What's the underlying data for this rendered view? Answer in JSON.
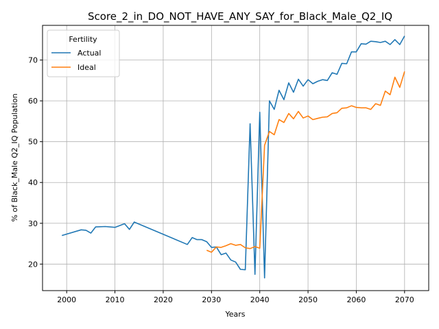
{
  "chart_data": {
    "type": "line",
    "title": "Score_2_in_DO_NOT_HAVE_ANY_SAY_for_Black_Male_Q2_IQ",
    "xlabel": "Years",
    "ylabel": "% of Black_Male Q2_IQ Population",
    "xlim": [
      1995,
      2075
    ],
    "ylim": [
      13.5,
      78.5
    ],
    "xticks": [
      2000,
      2010,
      2020,
      2030,
      2040,
      2050,
      2060,
      2070
    ],
    "yticks": [
      20,
      30,
      40,
      50,
      60,
      70
    ],
    "grid": true,
    "legend": {
      "title": "Fertility",
      "placement": "top-left"
    },
    "series": [
      {
        "name": "Actual",
        "color": "#1f77b4",
        "points": [
          [
            1999,
            27.0
          ],
          [
            2003,
            28.4
          ],
          [
            2004,
            28.3
          ],
          [
            2005,
            27.6
          ],
          [
            2006,
            29.1
          ],
          [
            2008,
            29.2
          ],
          [
            2010,
            29.0
          ],
          [
            2012,
            29.9
          ],
          [
            2013,
            28.5
          ],
          [
            2014,
            30.3
          ],
          [
            2025,
            24.8
          ],
          [
            2026,
            26.5
          ],
          [
            2027,
            26.0
          ],
          [
            2028,
            26.0
          ],
          [
            2029,
            25.5
          ],
          [
            2030,
            24.1
          ],
          [
            2031,
            24.2
          ],
          [
            2032,
            22.3
          ],
          [
            2033,
            22.7
          ],
          [
            2034,
            21.0
          ],
          [
            2035,
            20.5
          ],
          [
            2036,
            18.7
          ],
          [
            2037,
            18.6
          ],
          [
            2038,
            54.4
          ],
          [
            2039,
            17.5
          ],
          [
            2040,
            57.2
          ],
          [
            2041,
            16.6
          ],
          [
            2042,
            60.0
          ],
          [
            2043,
            57.9
          ],
          [
            2044,
            62.6
          ],
          [
            2045,
            60.3
          ],
          [
            2046,
            64.4
          ],
          [
            2047,
            62.1
          ],
          [
            2048,
            65.3
          ],
          [
            2049,
            63.6
          ],
          [
            2050,
            65.2
          ],
          [
            2051,
            64.2
          ],
          [
            2052,
            64.8
          ],
          [
            2053,
            65.2
          ],
          [
            2054,
            65.0
          ],
          [
            2055,
            66.9
          ],
          [
            2056,
            66.5
          ],
          [
            2057,
            69.2
          ],
          [
            2058,
            69.1
          ],
          [
            2059,
            72.0
          ],
          [
            2060,
            72.0
          ],
          [
            2061,
            74.0
          ],
          [
            2062,
            73.9
          ],
          [
            2063,
            74.6
          ],
          [
            2064,
            74.5
          ],
          [
            2065,
            74.3
          ],
          [
            2066,
            74.6
          ],
          [
            2067,
            73.8
          ],
          [
            2068,
            75.0
          ],
          [
            2069,
            73.8
          ],
          [
            2070,
            75.9
          ]
        ]
      },
      {
        "name": "Ideal",
        "color": "#ff7f0e",
        "points": [
          [
            2029,
            23.4
          ],
          [
            2030,
            22.9
          ],
          [
            2031,
            24.2
          ],
          [
            2032,
            24.1
          ],
          [
            2033,
            24.5
          ],
          [
            2034,
            25.0
          ],
          [
            2035,
            24.6
          ],
          [
            2036,
            24.8
          ],
          [
            2037,
            24.0
          ],
          [
            2038,
            23.8
          ],
          [
            2039,
            24.3
          ],
          [
            2040,
            23.9
          ],
          [
            2041,
            49.1
          ],
          [
            2042,
            52.5
          ],
          [
            2043,
            51.7
          ],
          [
            2044,
            55.4
          ],
          [
            2045,
            54.7
          ],
          [
            2046,
            56.9
          ],
          [
            2047,
            55.6
          ],
          [
            2048,
            57.4
          ],
          [
            2049,
            55.8
          ],
          [
            2050,
            56.3
          ],
          [
            2051,
            55.4
          ],
          [
            2052,
            55.7
          ],
          [
            2053,
            56.0
          ],
          [
            2054,
            56.1
          ],
          [
            2055,
            56.9
          ],
          [
            2056,
            57.1
          ],
          [
            2057,
            58.2
          ],
          [
            2058,
            58.3
          ],
          [
            2059,
            58.8
          ],
          [
            2060,
            58.4
          ],
          [
            2061,
            58.3
          ],
          [
            2062,
            58.3
          ],
          [
            2063,
            57.9
          ],
          [
            2064,
            59.3
          ],
          [
            2065,
            58.9
          ],
          [
            2066,
            62.4
          ],
          [
            2067,
            61.5
          ],
          [
            2068,
            65.8
          ],
          [
            2069,
            63.3
          ],
          [
            2070,
            67.2
          ]
        ]
      }
    ]
  }
}
